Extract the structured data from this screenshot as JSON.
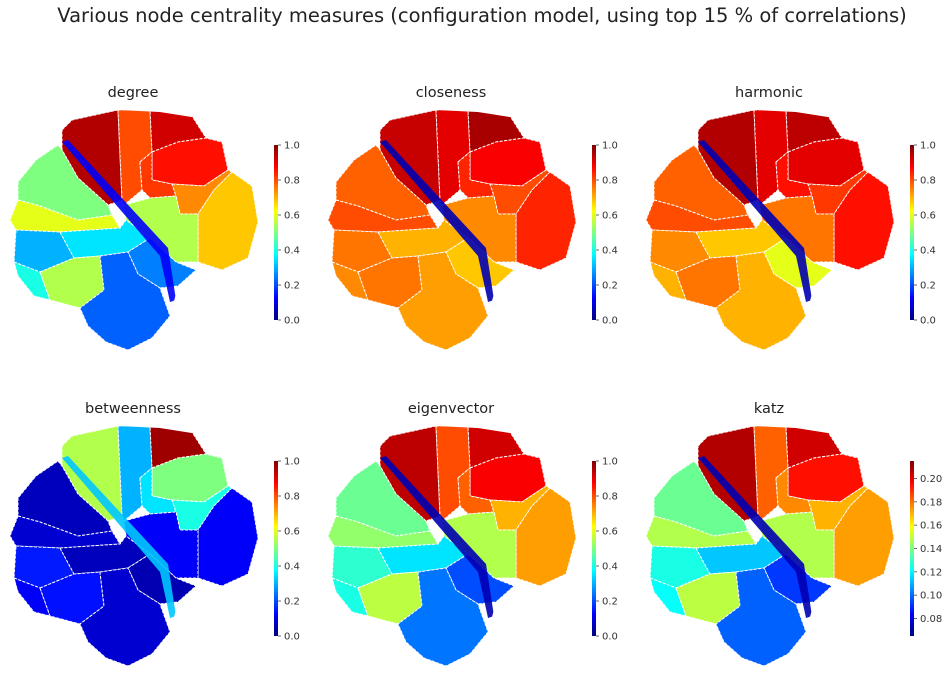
{
  "figure": {
    "title": "Various node centrality measures (configuration model, using top 15 % of correlations)"
  },
  "chart_data": [
    {
      "type": "heatmap",
      "title": "degree",
      "colormap": "jet",
      "colorbar": {
        "vmin": 0.0,
        "vmax": 1.0,
        "ticks": [
          "0.0",
          "0.2",
          "0.4",
          "0.6",
          "0.8",
          "1.0"
        ]
      }
    },
    {
      "type": "heatmap",
      "title": "closeness",
      "colormap": "jet",
      "colorbar": {
        "vmin": 0.0,
        "vmax": 1.0,
        "ticks": [
          "0.0",
          "0.2",
          "0.4",
          "0.6",
          "0.8",
          "1.0"
        ]
      }
    },
    {
      "type": "heatmap",
      "title": "harmonic",
      "colormap": "jet",
      "colorbar": {
        "vmin": 0.0,
        "vmax": 1.0,
        "ticks": [
          "0.0",
          "0.2",
          "0.4",
          "0.6",
          "0.8",
          "1.0"
        ]
      }
    },
    {
      "type": "heatmap",
      "title": "betweenness",
      "colormap": "jet",
      "colorbar": {
        "vmin": 0.0,
        "vmax": 1.0,
        "ticks": [
          "0.0",
          "0.2",
          "0.4",
          "0.6",
          "0.8",
          "1.0"
        ]
      }
    },
    {
      "type": "heatmap",
      "title": "eigenvector",
      "colormap": "jet",
      "colorbar": {
        "vmin": 0.0,
        "vmax": 1.0,
        "ticks": [
          "0.0",
          "0.2",
          "0.4",
          "0.6",
          "0.8",
          "1.0"
        ]
      }
    },
    {
      "type": "heatmap",
      "title": "katz",
      "colormap": "jet",
      "colorbar": {
        "vmin": 0.065,
        "vmax": 0.215,
        "ticks": [
          "0.08",
          "0.10",
          "0.12",
          "0.14",
          "0.16",
          "0.18",
          "0.20"
        ]
      }
    }
  ],
  "colors": {
    "jet_stops": [
      "#00007f",
      "#0000ff",
      "#007fff",
      "#00ffff",
      "#7fff7f",
      "#ffff00",
      "#ff7f00",
      "#ff0000",
      "#7f0000"
    ],
    "region_border": "#ffffff",
    "text": "#222222"
  }
}
